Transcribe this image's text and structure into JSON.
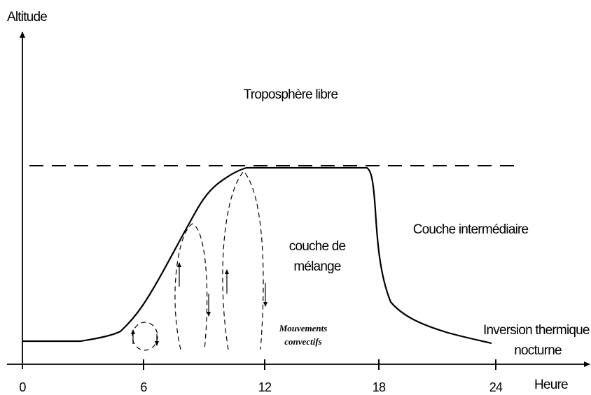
{
  "diagram": {
    "y_axis_label": "Altitude",
    "x_axis_label": "Heure",
    "x_ticks": [
      0,
      6,
      12,
      18,
      24
    ],
    "regions": {
      "free_troposphere": "Troposphère libre",
      "residual_layer": "Couche intermédiaire",
      "mixing_layer": [
        "couche de",
        "mélange"
      ],
      "convection": [
        "Mouvements",
        "convectifs"
      ],
      "nocturnal_inversion": [
        "Inversion thermique",
        "nocturne"
      ]
    }
  }
}
